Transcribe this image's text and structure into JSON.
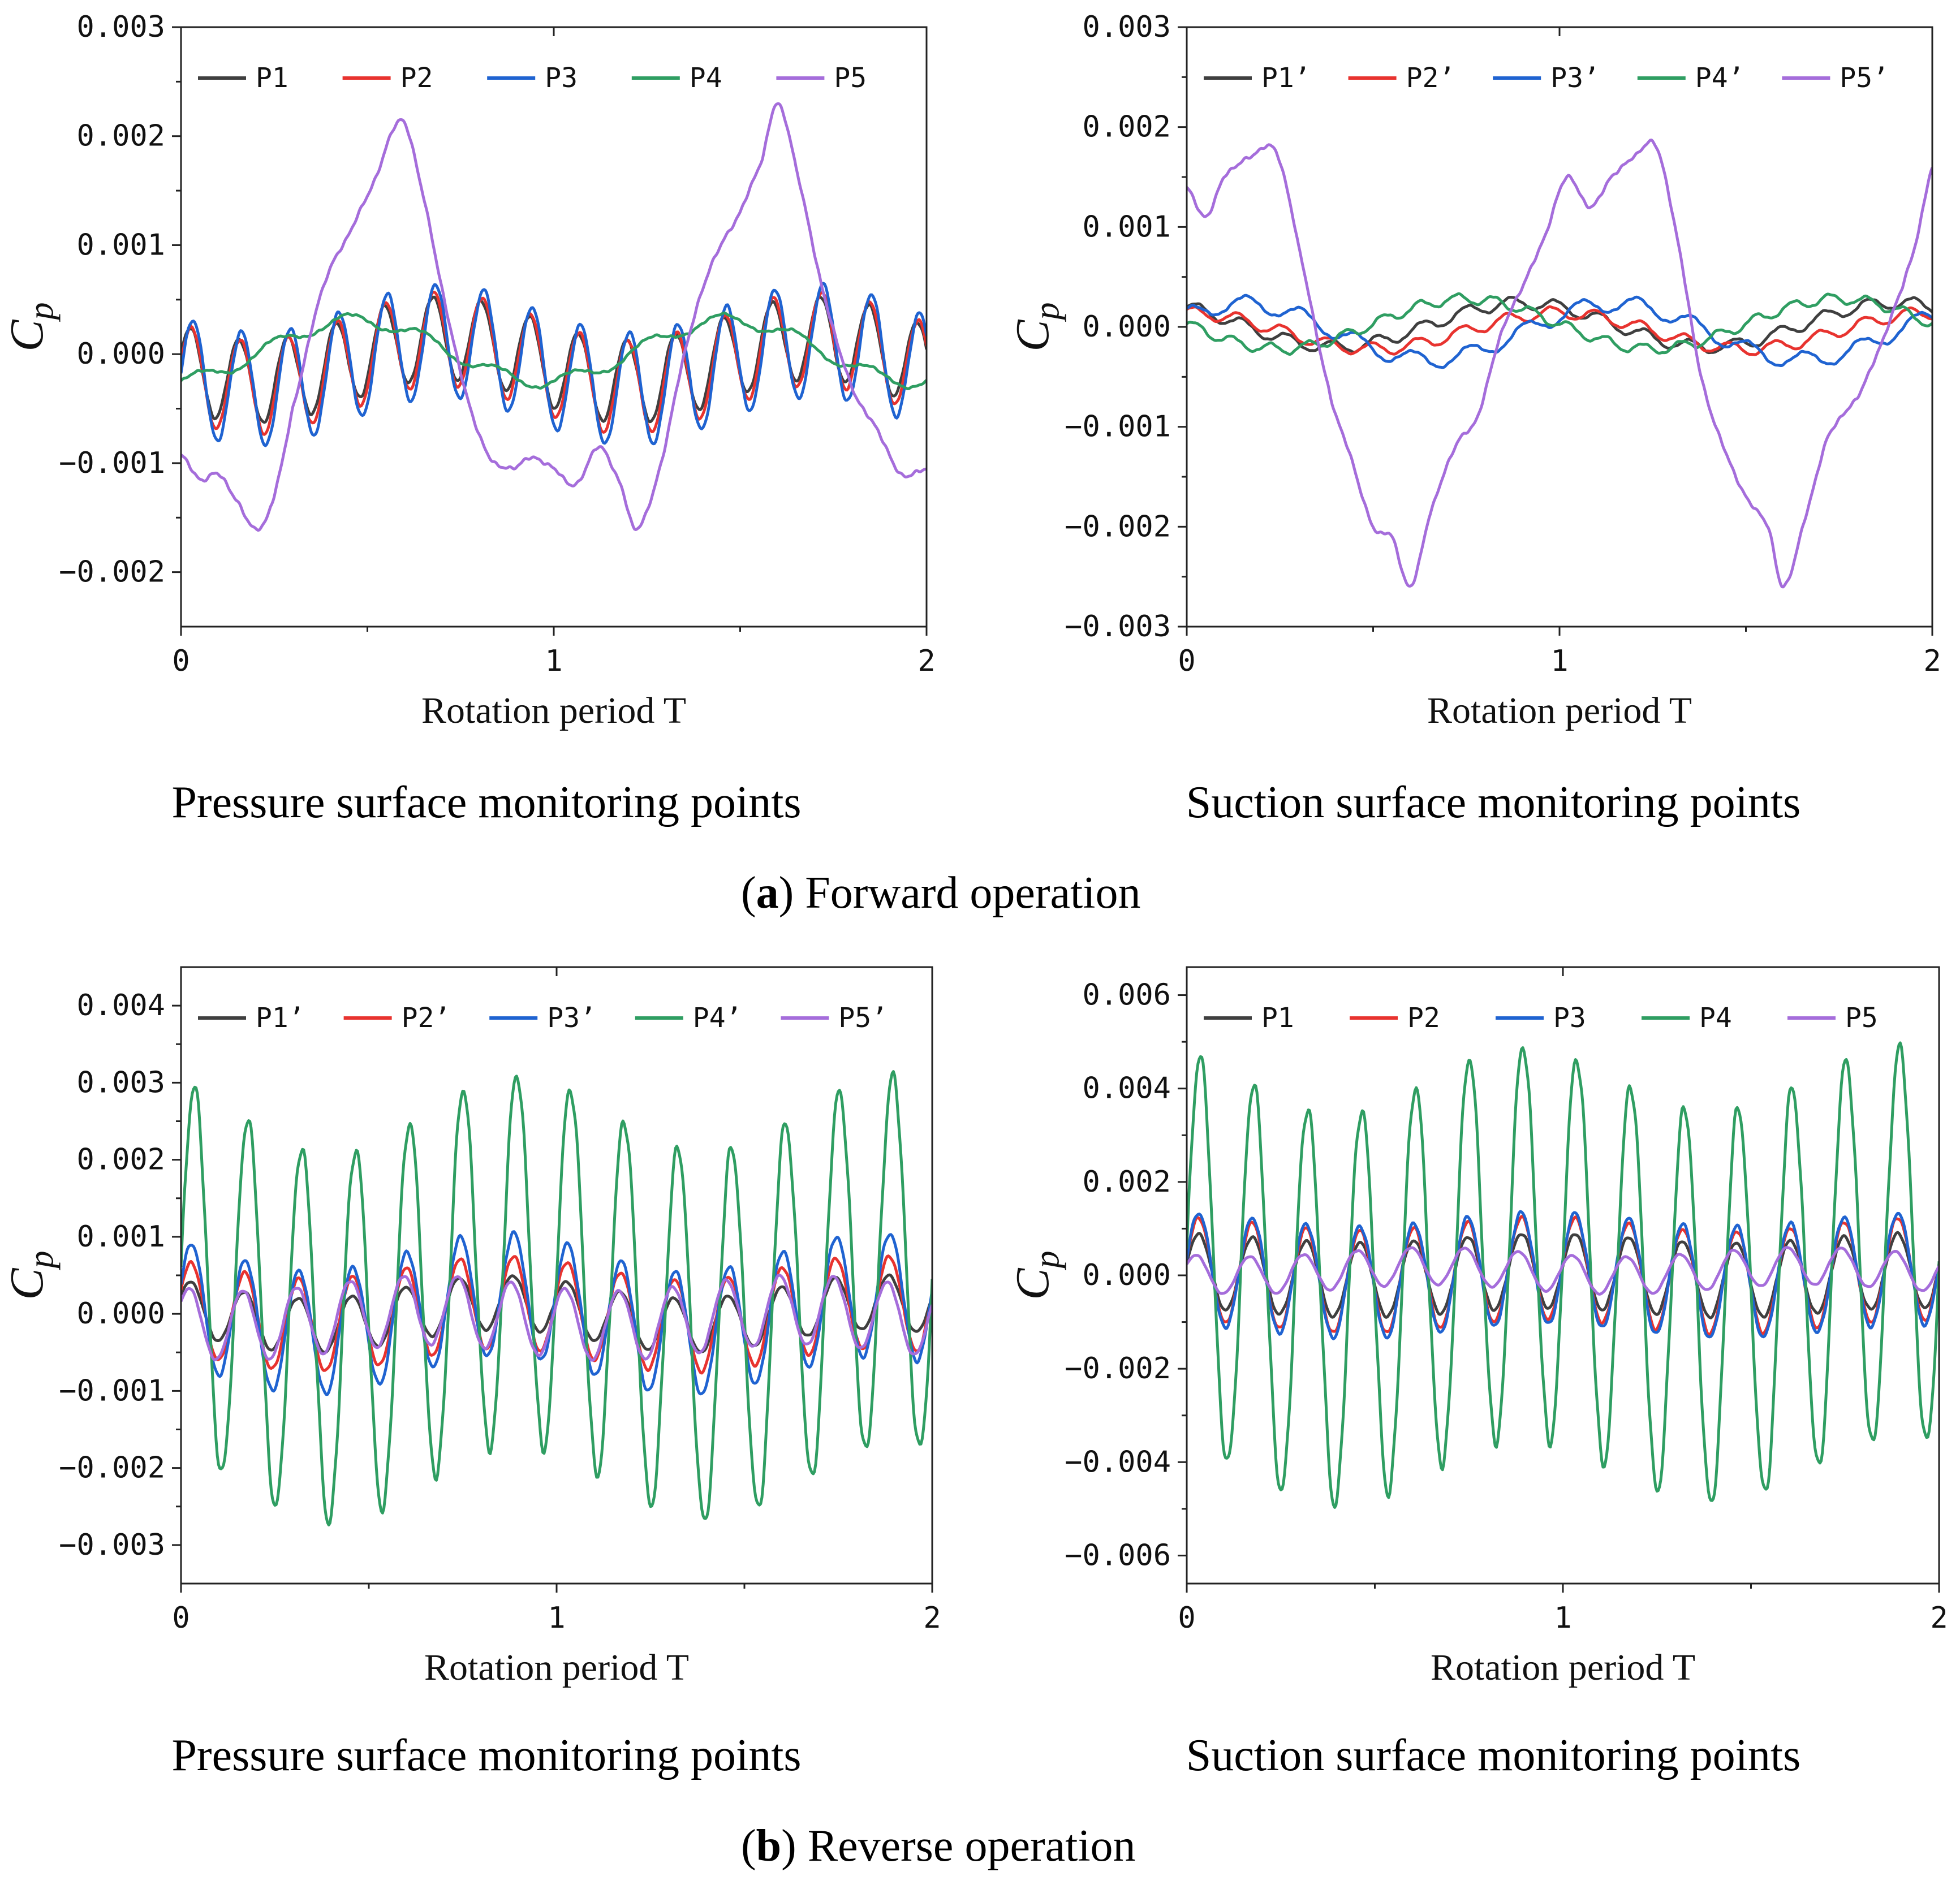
{
  "colors": {
    "P1": "#3f3f3f",
    "P2": "#e8332f",
    "P3": "#1f63d1",
    "P4": "#2f9e62",
    "P5": "#a56ddb"
  },
  "panel_row_a": {
    "caption_letter": "a",
    "caption_text": ") Forward operation",
    "left_subtitle": "Pressure surface monitoring points",
    "right_subtitle": "Suction surface monitoring points"
  },
  "panel_row_b": {
    "caption_letter": "b",
    "caption_text": ") Reverse operation",
    "left_subtitle": "Pressure surface monitoring points",
    "right_subtitle": "Suction surface monitoring points"
  },
  "chart_data": [
    {
      "id": "a-left",
      "type": "line",
      "xlabel": "Rotation period T",
      "ylabel": "C",
      "ylabel_sub": "p",
      "xlim": [
        0,
        2
      ],
      "ylim": [
        -0.0025,
        0.003
      ],
      "xticks": [
        0,
        1,
        2
      ],
      "xtick_labels": [
        "0",
        "1",
        "2"
      ],
      "yticks": [
        -0.002,
        -0.001,
        0.0,
        0.001,
        0.002,
        0.003
      ],
      "ytick_labels": [
        "−0.002",
        "−0.001",
        "0.000",
        "0.001",
        "0.002",
        "0.003"
      ],
      "grid": false,
      "legend": [
        "P1",
        "P2",
        "P3",
        "P4",
        "P5"
      ],
      "series": [
        {
          "name": "P1",
          "wave": {
            "base": -5e-05,
            "period_T": 0.13,
            "amp": 0.00038,
            "phase": 0.05,
            "mod_amp": 0.0002,
            "mod_period": 1.0,
            "mod_phase": 0.55
          }
        },
        {
          "name": "P2",
          "wave": {
            "base": -8e-05,
            "period_T": 0.13,
            "amp": 0.00043,
            "phase": 0.03,
            "mod_amp": 0.00022,
            "mod_period": 1.0,
            "mod_phase": 0.55
          }
        },
        {
          "name": "P3",
          "wave": {
            "base": -0.0001,
            "period_T": 0.13,
            "amp": 0.00052,
            "phase": 0.0,
            "mod_amp": 0.00022,
            "mod_period": 1.0,
            "mod_phase": 0.55
          }
        },
        {
          "name": "P4",
          "wave": {
            "base": 3e-05,
            "period_T": 1.0,
            "amp": 0.00028,
            "phase": 0.78,
            "mod_amp": 6e-05,
            "mod_period": 0.2,
            "mod_phase": 0.0
          }
        },
        {
          "name": "P5",
          "keypoints": [
            [
              0.0,
              -0.00092
            ],
            [
              0.05,
              -0.00115
            ],
            [
              0.1,
              -0.0011
            ],
            [
              0.15,
              -0.00135
            ],
            [
              0.2,
              -0.0016
            ],
            [
              0.24,
              -0.0014
            ],
            [
              0.3,
              -0.0005
            ],
            [
              0.38,
              0.0006
            ],
            [
              0.45,
              0.0011
            ],
            [
              0.52,
              0.0016
            ],
            [
              0.59,
              0.00215
            ],
            [
              0.64,
              0.0016
            ],
            [
              0.7,
              0.0006
            ],
            [
              0.76,
              -0.0003
            ],
            [
              0.82,
              -0.0009
            ],
            [
              0.88,
              -0.00105
            ],
            [
              0.94,
              -0.00095
            ],
            [
              1.0,
              -0.00105
            ],
            [
              1.06,
              -0.0012
            ],
            [
              1.12,
              -0.00085
            ],
            [
              1.18,
              -0.0012
            ],
            [
              1.22,
              -0.0016
            ],
            [
              1.28,
              -0.0011
            ],
            [
              1.35,
              0.0
            ],
            [
              1.42,
              0.0008
            ],
            [
              1.5,
              0.0013
            ],
            [
              1.56,
              0.0018
            ],
            [
              1.6,
              0.0023
            ],
            [
              1.65,
              0.0017
            ],
            [
              1.72,
              0.0006
            ],
            [
              1.8,
              -0.0003
            ],
            [
              1.87,
              -0.0007
            ],
            [
              1.93,
              -0.0011
            ],
            [
              2.0,
              -0.00105
            ]
          ]
        }
      ]
    },
    {
      "id": "a-right",
      "type": "line",
      "xlabel": "Rotation period T",
      "ylabel": "C",
      "ylabel_sub": "p",
      "xlim": [
        0,
        2
      ],
      "ylim": [
        -0.003,
        0.003
      ],
      "xticks": [
        0,
        1,
        2
      ],
      "xtick_labels": [
        "0",
        "1",
        "2"
      ],
      "yticks": [
        -0.003,
        -0.002,
        -0.001,
        0.0,
        0.001,
        0.002,
        0.003
      ],
      "ytick_labels": [
        "−0.003",
        "−0.002",
        "−0.001",
        "0.000",
        "0.001",
        "0.002",
        "0.003"
      ],
      "grid": false,
      "legend": [
        "P1’",
        "P2’",
        "P3’",
        "P4’",
        "P5’"
      ],
      "series": [
        {
          "name": "P1’",
          "wave": {
            "base": 2e-05,
            "period_T": 1.0,
            "amp": 0.00022,
            "phase": 0.35,
            "mod_amp": 6e-05,
            "mod_period": 0.12,
            "mod_phase": 0.0
          }
        },
        {
          "name": "P2’",
          "wave": {
            "base": -4e-05,
            "period_T": 1.0,
            "amp": 0.00018,
            "phase": 0.25,
            "mod_amp": 6e-05,
            "mod_period": 0.12,
            "mod_phase": 0.1
          }
        },
        {
          "name": "P3’",
          "wave": {
            "base": -5e-05,
            "period_T": 1.0,
            "amp": 0.00028,
            "phase": 0.1,
            "mod_amp": 8e-05,
            "mod_period": 0.15,
            "mod_phase": 0.2
          }
        },
        {
          "name": "P4’",
          "wave": {
            "base": 3e-05,
            "period_T": 1.0,
            "amp": 0.00025,
            "phase": 0.5,
            "mod_amp": 5e-05,
            "mod_period": 0.1,
            "mod_phase": 0.0
          }
        },
        {
          "name": "P5’",
          "keypoints": [
            [
              0.0,
              0.0014
            ],
            [
              0.05,
              0.0011
            ],
            [
              0.1,
              0.0015
            ],
            [
              0.17,
              0.0017
            ],
            [
              0.24,
              0.00175
            ],
            [
              0.3,
              0.0008
            ],
            [
              0.38,
              -0.0006
            ],
            [
              0.44,
              -0.0013
            ],
            [
              0.5,
              -0.002
            ],
            [
              0.55,
              -0.0021
            ],
            [
              0.6,
              -0.0026
            ],
            [
              0.65,
              -0.0019
            ],
            [
              0.72,
              -0.0012
            ],
            [
              0.78,
              -0.0009
            ],
            [
              0.84,
              -0.0001
            ],
            [
              0.9,
              0.0004
            ],
            [
              0.96,
              0.0009
            ],
            [
              1.02,
              0.0015
            ],
            [
              1.08,
              0.0012
            ],
            [
              1.14,
              0.0015
            ],
            [
              1.2,
              0.0017
            ],
            [
              1.26,
              0.0018
            ],
            [
              1.32,
              0.0008
            ],
            [
              1.38,
              -0.0005
            ],
            [
              1.44,
              -0.0012
            ],
            [
              1.5,
              -0.0017
            ],
            [
              1.56,
              -0.002
            ],
            [
              1.6,
              -0.0026
            ],
            [
              1.66,
              -0.0019
            ],
            [
              1.72,
              -0.0011
            ],
            [
              1.8,
              -0.0007
            ],
            [
              1.86,
              -0.0002
            ],
            [
              1.92,
              0.0004
            ],
            [
              1.96,
              0.0009
            ],
            [
              2.0,
              0.0016
            ]
          ]
        }
      ]
    },
    {
      "id": "b-left",
      "type": "line",
      "xlabel": "Rotation period T",
      "ylabel": "C",
      "ylabel_sub": "p",
      "xlim": [
        0,
        2
      ],
      "ylim": [
        -0.0035,
        0.0045
      ],
      "xticks": [
        0,
        1,
        2
      ],
      "xtick_labels": [
        "0",
        "1",
        "2"
      ],
      "yticks": [
        -0.003,
        -0.002,
        -0.001,
        0.0,
        0.001,
        0.002,
        0.003,
        0.004
      ],
      "ytick_labels": [
        "−0.003",
        "−0.002",
        "−0.001",
        "0.000",
        "0.001",
        "0.002",
        "0.003",
        "0.004"
      ],
      "grid": false,
      "legend": [
        "P1’",
        "P2’",
        "P3’",
        "P4’",
        "P5’"
      ],
      "series": [
        {
          "name": "P1’",
          "wave": {
            "base": 0.0,
            "period_T": 0.143,
            "amp": 0.00035,
            "phase": 0.07,
            "mod_amp": 0.00015,
            "mod_period": 1.0,
            "mod_phase": 0.4
          }
        },
        {
          "name": "P2’",
          "wave": {
            "base": 0.0,
            "period_T": 0.143,
            "amp": 0.0006,
            "phase": 0.06,
            "mod_amp": 0.00015,
            "mod_period": 1.0,
            "mod_phase": 0.4
          }
        },
        {
          "name": "P3’",
          "wave": {
            "base": 0.0,
            "period_T": 0.143,
            "amp": 0.0008,
            "phase": 0.05,
            "mod_amp": 0.00025,
            "mod_period": 1.0,
            "mod_phase": 0.4
          }
        },
        {
          "name": "P4’",
          "wave": {
            "base": 0.0002,
            "period_T": 0.143,
            "amp": 0.0024,
            "phase": 0.0,
            "mod_amp": 0.0005,
            "mod_period": 1.0,
            "mod_phase": 0.35
          }
        },
        {
          "name": "P5’",
          "wave": {
            "base": -5e-05,
            "period_T": 0.143,
            "amp": 0.00045,
            "phase": 0.1,
            "mod_amp": 0.0001,
            "mod_period": 1.0,
            "mod_phase": 0.6
          }
        }
      ]
    },
    {
      "id": "b-right",
      "type": "line",
      "xlabel": "Rotation period T",
      "ylabel": "C",
      "ylabel_sub": "p",
      "xlim": [
        0,
        2
      ],
      "ylim": [
        -0.0066,
        0.0066
      ],
      "xticks": [
        0,
        1,
        2
      ],
      "xtick_labels": [
        "0",
        "1",
        "2"
      ],
      "yticks": [
        -0.006,
        -0.004,
        -0.002,
        0.0,
        0.002,
        0.004,
        0.006
      ],
      "ytick_labels": [
        "−0.006",
        "−0.004",
        "−0.002",
        "0.000",
        "0.002",
        "0.004",
        "0.006"
      ],
      "grid": false,
      "legend": [
        "P1",
        "P2",
        "P3",
        "P4",
        "P5"
      ],
      "series": [
        {
          "name": "P1",
          "wave": {
            "base": 0.0,
            "period_T": 0.143,
            "amp": 0.0008,
            "phase": 0.03,
            "mod_amp": 0.0001,
            "mod_period": 1.0,
            "mod_phase": 0.3
          }
        },
        {
          "name": "P2",
          "wave": {
            "base": 0.0,
            "period_T": 0.143,
            "amp": 0.0011,
            "phase": 0.03,
            "mod_amp": 0.00015,
            "mod_period": 1.0,
            "mod_phase": 0.3
          }
        },
        {
          "name": "P3",
          "wave": {
            "base": 0.0,
            "period_T": 0.143,
            "amp": 0.0012,
            "phase": 0.03,
            "mod_amp": 0.00015,
            "mod_period": 1.0,
            "mod_phase": 0.3
          }
        },
        {
          "name": "P4",
          "wave": {
            "base": 0.0,
            "period_T": 0.143,
            "amp": 0.0042,
            "phase": 0.0,
            "mod_amp": 0.0007,
            "mod_period": 1.0,
            "mod_phase": 0.35
          }
        },
        {
          "name": "P5",
          "wave": {
            "base": 0.0001,
            "period_T": 0.143,
            "amp": 0.0004,
            "phase": 0.08,
            "mod_amp": 0.0001,
            "mod_period": 1.0,
            "mod_phase": 0.6
          }
        }
      ]
    }
  ]
}
